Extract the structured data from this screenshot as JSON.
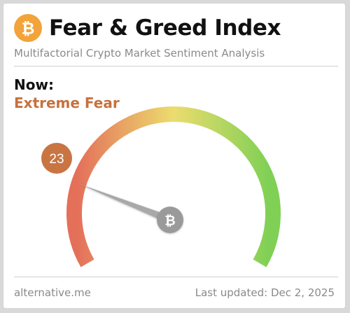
{
  "header": {
    "logo_icon": "bitcoin-icon",
    "title": "Fear & Greed Index",
    "subtitle": "Multifactorial Crypto Market Sentiment Analysis"
  },
  "current": {
    "label": "Now:",
    "classification": "Extreme Fear",
    "value": "23",
    "value_numeric": 23,
    "scale_min": 0,
    "scale_max": 100
  },
  "gauge": {
    "hub_icon": "bitcoin-icon",
    "needle_icon": "gauge-needle"
  },
  "footer": {
    "source": "alternative.me",
    "updated": "Last updated: Dec 2, 2025"
  },
  "colors": {
    "accent_fear": "#c5713e",
    "badge_fill": "#c97443",
    "bitcoin_orange": "#f2a33a",
    "gauge_low": "#e4705a",
    "gauge_mid": "#ecdc6e",
    "gauge_high": "#7fd055",
    "needle": "#a9a9a9",
    "hub": "#9a9a9a"
  }
}
